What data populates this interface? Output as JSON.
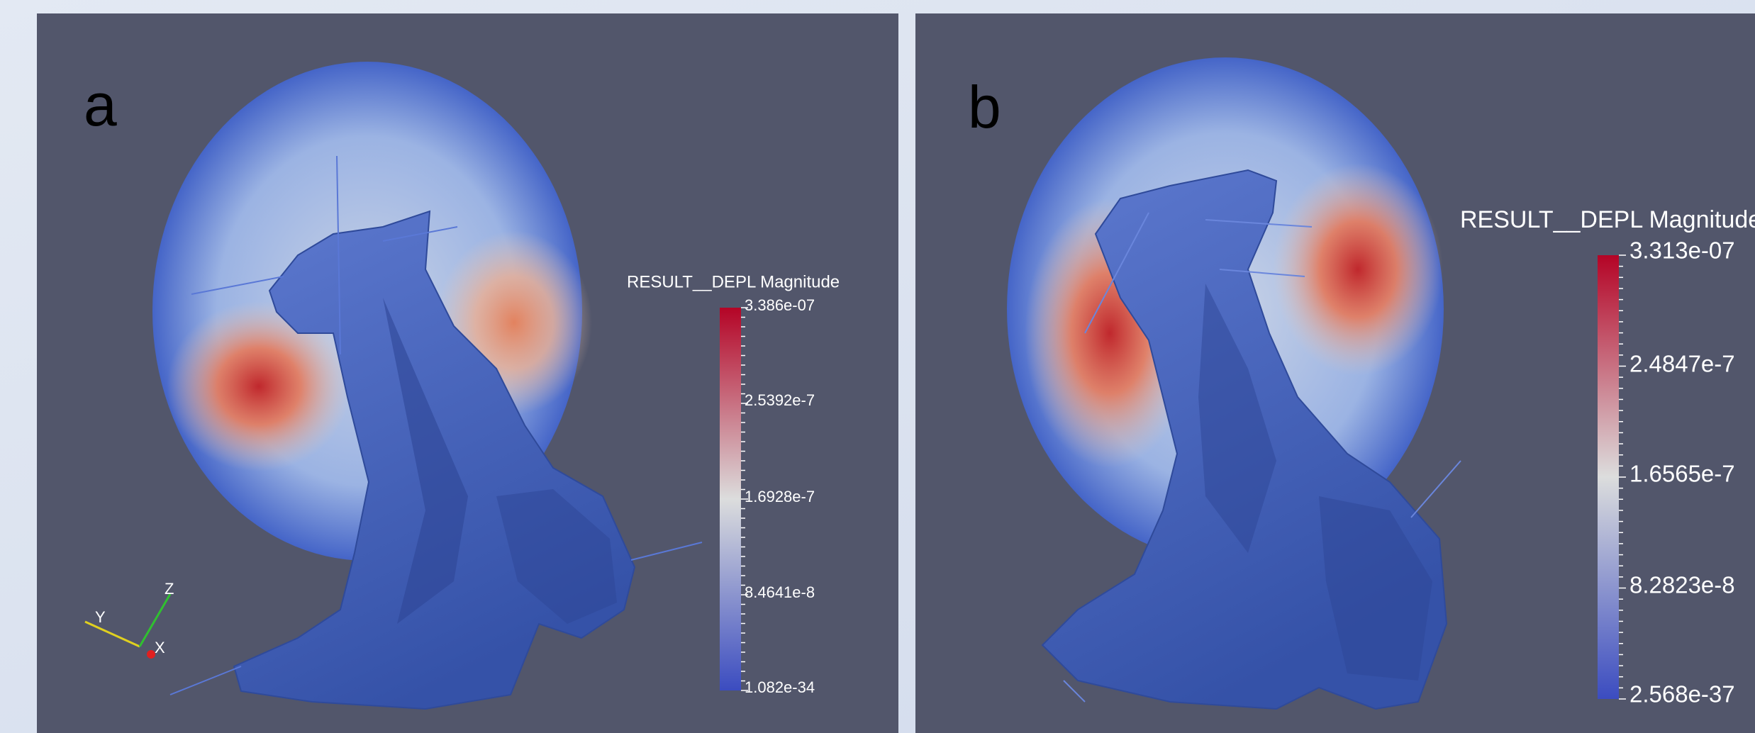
{
  "panels": [
    {
      "label": "a",
      "colorbar": {
        "title": "RESULT__DEPL Magnitude",
        "ticks": [
          "3.386e-07",
          "2.5392e-7",
          "1.6928e-7",
          "8.4641e-8",
          "1.082e-34"
        ]
      },
      "axes": {
        "z": "Z",
        "y": "Y",
        "x": "X"
      }
    },
    {
      "label": "b",
      "colorbar": {
        "title": "RESULT__DEPL Magnitude",
        "ticks": [
          "3.313e-07",
          "2.4847e-7",
          "1.6565e-7",
          "8.2823e-8",
          "2.568e-37"
        ]
      }
    }
  ]
}
